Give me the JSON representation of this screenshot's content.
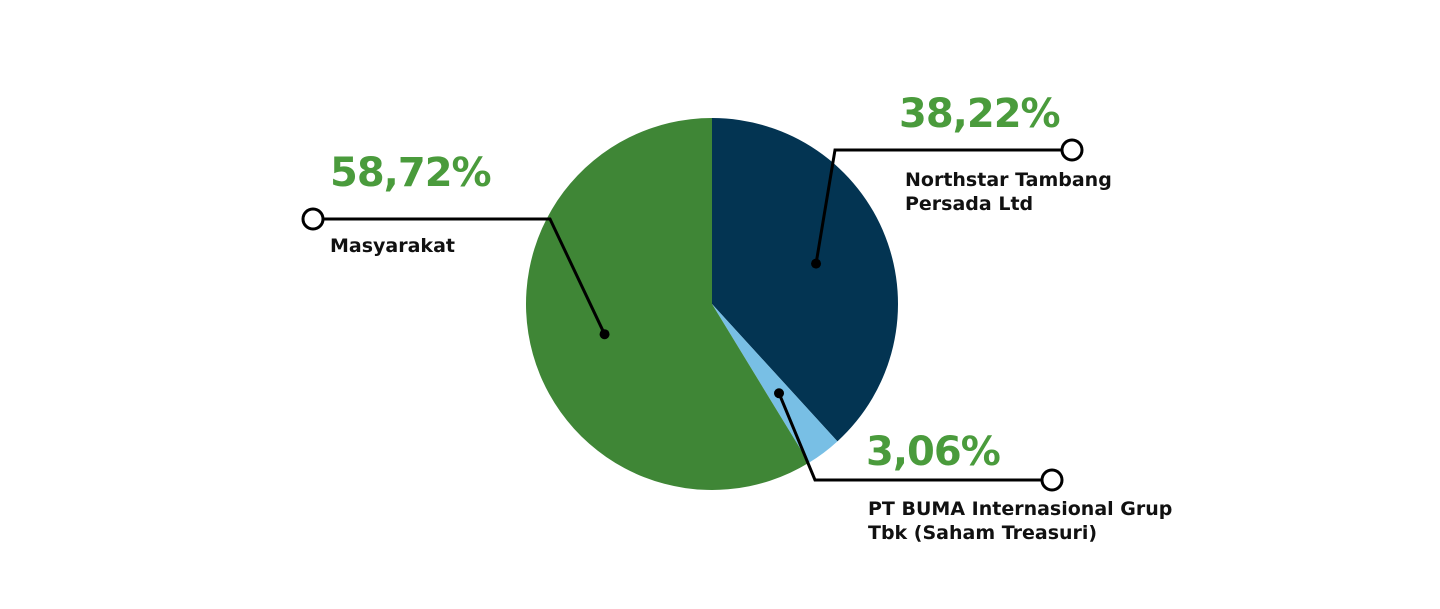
{
  "chart_data": {
    "type": "pie",
    "categories": [
      "Northstar Tambang Persada Ltd",
      "PT BUMA Internasional Grup Tbk (Saham Treasuri)",
      "Masyarakat"
    ],
    "values": [
      38.22,
      3.06,
      58.72
    ],
    "value_labels": [
      "38,22%",
      "3,06%",
      "58,72%"
    ],
    "colors": [
      "#033452",
      "#78bfe5",
      "#3f8636"
    ]
  }
}
